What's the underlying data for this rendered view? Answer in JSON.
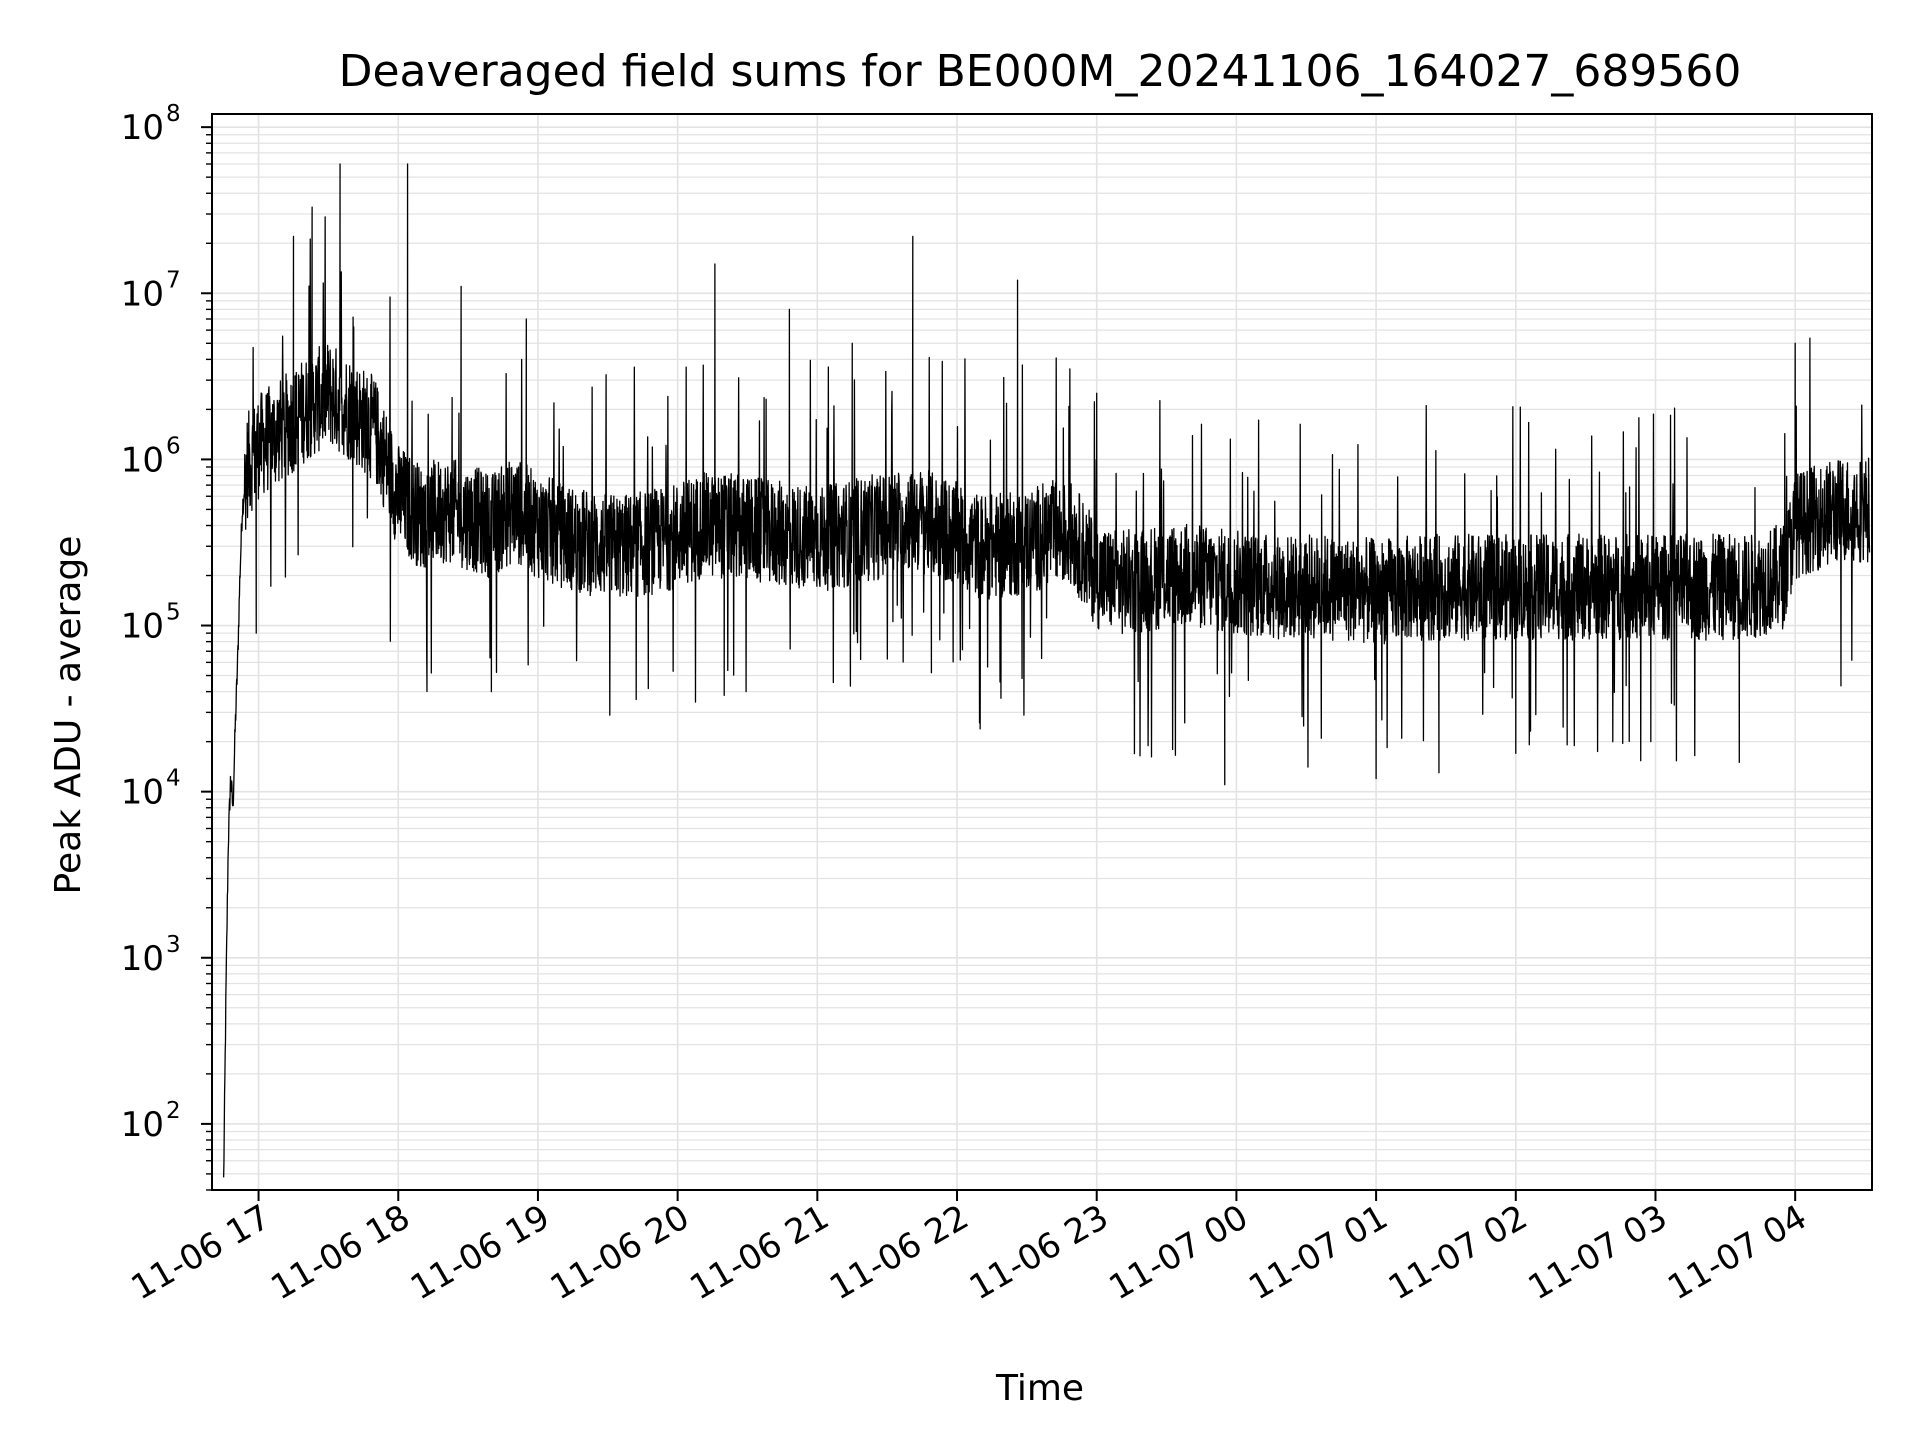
{
  "chart_data": {
    "type": "line",
    "title": "Deaveraged field sums for BE000M_20241106_164027_689560",
    "xlabel": "Time",
    "ylabel": "Peak ADU - average",
    "yscale": "log",
    "ylim": [
      40,
      120000000
    ],
    "xlim": [
      "2024-11-06 16:40",
      "2024-11-07 04:33"
    ],
    "grid": true,
    "line_color": "#000000",
    "grid_color": "#e3e3e3",
    "x_ticks": [
      {
        "value": "2024-11-06 17:00",
        "label": "11-06 17"
      },
      {
        "value": "2024-11-06 18:00",
        "label": "11-06 18"
      },
      {
        "value": "2024-11-06 19:00",
        "label": "11-06 19"
      },
      {
        "value": "2024-11-06 20:00",
        "label": "11-06 20"
      },
      {
        "value": "2024-11-06 21:00",
        "label": "11-06 21"
      },
      {
        "value": "2024-11-06 22:00",
        "label": "11-06 22"
      },
      {
        "value": "2024-11-06 23:00",
        "label": "11-06 23"
      },
      {
        "value": "2024-11-07 00:00",
        "label": "11-07 00"
      },
      {
        "value": "2024-11-07 01:00",
        "label": "11-07 01"
      },
      {
        "value": "2024-11-07 02:00",
        "label": "11-07 02"
      },
      {
        "value": "2024-11-07 03:00",
        "label": "11-07 03"
      },
      {
        "value": "2024-11-07 04:00",
        "label": "11-07 04"
      }
    ],
    "y_ticks": [
      {
        "value": 100,
        "base": "10",
        "exp": "2"
      },
      {
        "value": 1000,
        "base": "10",
        "exp": "3"
      },
      {
        "value": 10000,
        "base": "10",
        "exp": "4"
      },
      {
        "value": 100000,
        "base": "10",
        "exp": "5"
      },
      {
        "value": 1000000,
        "base": "10",
        "exp": "6"
      },
      {
        "value": 10000000,
        "base": "10",
        "exp": "7"
      },
      {
        "value": 100000000,
        "base": "10",
        "exp": "8"
      }
    ],
    "series": [
      {
        "points": [
          [
            "2024-11-06 16:45",
            45
          ],
          [
            "2024-11-06 16:46",
            600
          ],
          [
            "2024-11-06 16:47",
            5000
          ],
          [
            "2024-11-06 16:48",
            12000
          ],
          [
            "2024-11-06 16:49",
            8000
          ],
          [
            "2024-11-06 16:50",
            25000
          ],
          [
            "2024-11-06 16:51",
            60000
          ],
          [
            "2024-11-06 16:52",
            200000
          ],
          [
            "2024-11-06 16:53",
            500000
          ],
          [
            "2024-11-06 16:55",
            900000
          ],
          [
            "2024-11-06 17:00",
            1200000
          ],
          [
            "2024-11-06 17:10",
            1500000
          ],
          [
            "2024-11-06 17:20",
            2000000
          ],
          [
            "2024-11-06 17:30",
            2500000
          ],
          [
            "2024-11-06 17:40",
            2000000
          ],
          [
            "2024-11-06 17:50",
            1500000
          ],
          [
            "2024-11-06 18:00",
            600000
          ],
          [
            "2024-11-06 18:10",
            450000
          ],
          [
            "2024-11-06 18:20",
            500000
          ],
          [
            "2024-11-06 18:30",
            450000
          ],
          [
            "2024-11-06 18:40",
            400000
          ],
          [
            "2024-11-06 18:50",
            500000
          ],
          [
            "2024-11-06 19:00",
            400000
          ],
          [
            "2024-11-06 19:10",
            350000
          ],
          [
            "2024-11-06 19:20",
            320000
          ],
          [
            "2024-11-06 19:30",
            300000
          ],
          [
            "2024-11-06 19:40",
            300000
          ],
          [
            "2024-11-06 19:50",
            320000
          ],
          [
            "2024-11-06 20:00",
            350000
          ],
          [
            "2024-11-06 20:10",
            400000
          ],
          [
            "2024-11-06 20:20",
            400000
          ],
          [
            "2024-11-06 20:30",
            380000
          ],
          [
            "2024-11-06 20:40",
            360000
          ],
          [
            "2024-11-06 20:50",
            350000
          ],
          [
            "2024-11-06 21:00",
            330000
          ],
          [
            "2024-11-06 21:10",
            350000
          ],
          [
            "2024-11-06 21:20",
            380000
          ],
          [
            "2024-11-06 21:30",
            400000
          ],
          [
            "2024-11-06 21:40",
            450000
          ],
          [
            "2024-11-06 21:50",
            400000
          ],
          [
            "2024-11-06 22:00",
            350000
          ],
          [
            "2024-11-06 22:10",
            300000
          ],
          [
            "2024-11-06 22:20",
            300000
          ],
          [
            "2024-11-06 22:30",
            320000
          ],
          [
            "2024-11-06 22:40",
            360000
          ],
          [
            "2024-11-06 22:50",
            350000
          ],
          [
            "2024-11-06 23:00",
            200000
          ],
          [
            "2024-11-06 23:10",
            180000
          ],
          [
            "2024-11-06 23:20",
            190000
          ],
          [
            "2024-11-06 23:30",
            200000
          ],
          [
            "2024-11-06 23:40",
            200000
          ],
          [
            "2024-11-06 23:50",
            190000
          ],
          [
            "2024-11-07 00:00",
            180000
          ],
          [
            "2024-11-07 00:20",
            170000
          ],
          [
            "2024-11-07 00:40",
            170000
          ],
          [
            "2024-11-07 01:00",
            160000
          ],
          [
            "2024-11-07 01:20",
            170000
          ],
          [
            "2024-11-07 01:40",
            170000
          ],
          [
            "2024-11-07 02:00",
            170000
          ],
          [
            "2024-11-07 02:20",
            170000
          ],
          [
            "2024-11-07 02:40",
            170000
          ],
          [
            "2024-11-07 03:00",
            170000
          ],
          [
            "2024-11-07 03:20",
            170000
          ],
          [
            "2024-11-07 03:40",
            170000
          ],
          [
            "2024-11-07 03:55",
            200000
          ],
          [
            "2024-11-07 04:00",
            400000
          ],
          [
            "2024-11-07 04:10",
            450000
          ],
          [
            "2024-11-07 04:20",
            500000
          ],
          [
            "2024-11-07 04:32",
            500000
          ]
        ],
        "spikes": [
          [
            "2024-11-06 17:15",
            22000000
          ],
          [
            "2024-11-06 17:23",
            33000000
          ],
          [
            "2024-11-06 17:35",
            60000000
          ],
          [
            "2024-11-06 18:04",
            60000000
          ],
          [
            "2024-11-06 18:27",
            11000000
          ],
          [
            "2024-11-06 18:55",
            7000000
          ],
          [
            "2024-11-06 20:16",
            15000000
          ],
          [
            "2024-11-06 20:38",
            2300000
          ],
          [
            "2024-11-06 20:48",
            8000000
          ],
          [
            "2024-11-06 21:15",
            5000000
          ],
          [
            "2024-11-06 21:41",
            22000000
          ],
          [
            "2024-11-06 22:26",
            12000000
          ],
          [
            "2024-11-06 23:00",
            2500000
          ],
          [
            "2024-11-07 04:00",
            5000000
          ]
        ],
        "dips": [
          [
            "2024-11-06 16:59",
            90000
          ],
          [
            "2024-11-06 18:40",
            40000
          ],
          [
            "2024-11-06 20:20",
            38000
          ],
          [
            "2024-11-06 21:49",
            52000
          ],
          [
            "2024-11-06 23:55",
            11000
          ],
          [
            "2024-11-07 01:00",
            12000
          ],
          [
            "2024-11-07 01:27",
            13000
          ],
          [
            "2024-11-07 02:00",
            17000
          ],
          [
            "2024-11-07 02:58",
            20000
          ],
          [
            "2024-11-07 03:36",
            15000
          ]
        ]
      }
    ]
  }
}
